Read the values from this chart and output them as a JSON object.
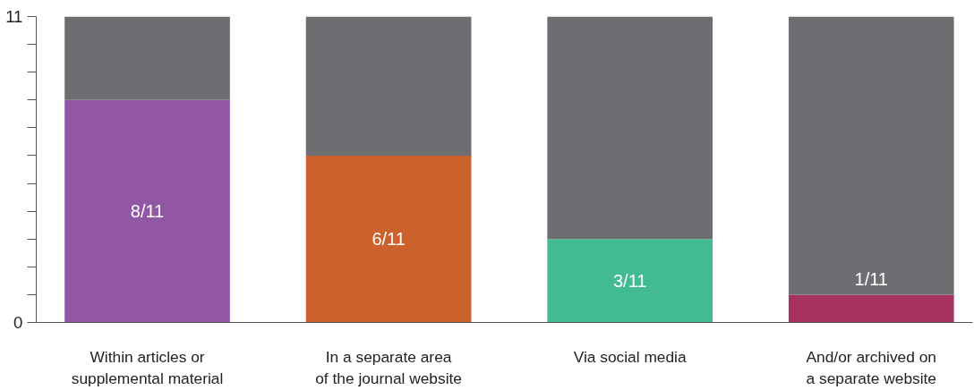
{
  "chart_data": {
    "type": "bar",
    "stacked": true,
    "categories": [
      "Within articles or\nsupplemental material",
      "In a separate area\nof the journal website",
      "Via social media",
      "And/or archived on\na separate website"
    ],
    "series": [
      {
        "colors": [
          "#9157a5",
          "#cb612c",
          "#41bb8f",
          "#a8325f"
        ],
        "values": [
          8,
          6,
          3,
          1
        ],
        "value_labels": [
          "8/11",
          "6/11",
          "3/11",
          "1/11"
        ]
      },
      {
        "color": "#6d6e71",
        "values": [
          3,
          5,
          8,
          10
        ]
      }
    ],
    "ylim": [
      0,
      11
    ],
    "yticks": [
      0,
      {
        "value": 1,
        "label": null
      },
      {
        "value": 2,
        "label": null
      },
      {
        "value": 3,
        "label": null
      },
      {
        "value": 4,
        "label": null
      },
      {
        "value": 5,
        "label": null
      },
      {
        "value": 6,
        "label": null
      },
      {
        "value": 7,
        "label": null
      },
      {
        "value": 8,
        "label": null
      },
      {
        "value": 9,
        "label": null
      },
      {
        "value": 10,
        "label": null
      },
      11
    ],
    "grid": false
  }
}
